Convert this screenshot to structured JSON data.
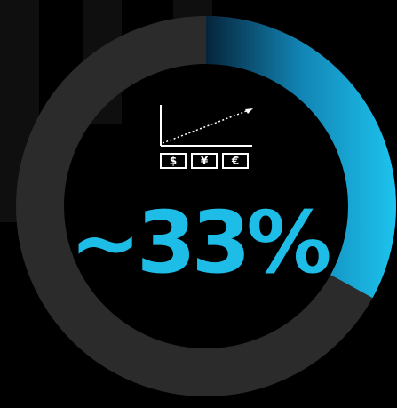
{
  "stat": {
    "value_text": "~33%",
    "fraction": 0.33
  },
  "icon": {
    "name": "growth-chart-icon",
    "currencies": [
      "$",
      "¥",
      "€"
    ]
  },
  "colors": {
    "background": "#000000",
    "ring_track": "#2b2b2b",
    "accent": "#19b3e0",
    "accent_dark": "#06243a",
    "text_accent": "#1ebde8",
    "icon": "#ffffff"
  }
}
